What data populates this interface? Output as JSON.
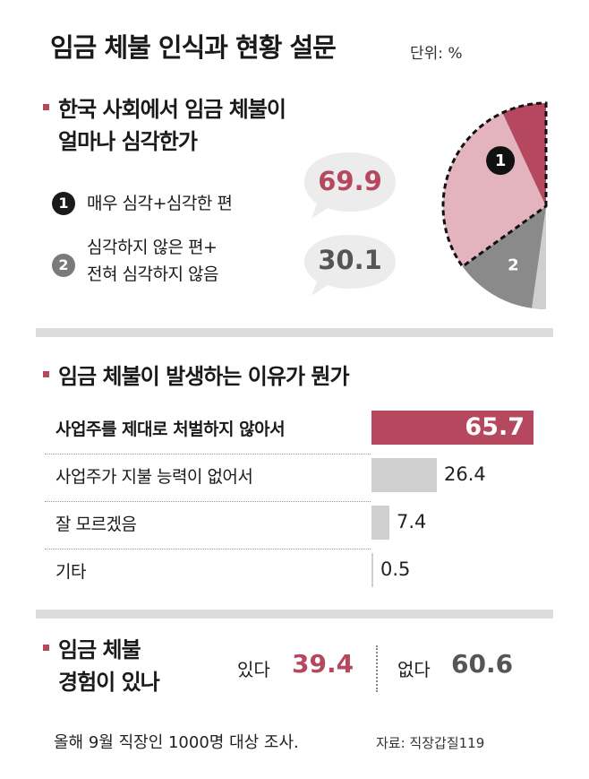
{
  "title": "임금 체불 인식과 현황 설문",
  "unit": "단위: %",
  "section1": {
    "title_line1": "한국 사회에서 임금 체불이",
    "title_line2": "얼마나 심각한가",
    "items": [
      {
        "num": "1",
        "label_line1": "매우 심각+심각한 편",
        "label_line2": "",
        "value": "69.9"
      },
      {
        "num": "2",
        "label_line1": "심각하지 않은 편+",
        "label_line2": "전혀 심각하지 않음",
        "value": "30.1"
      }
    ]
  },
  "section2": {
    "title": "임금 체불이 발생하는 이유가 뭔가"
  },
  "section3": {
    "title_line1": "임금 체불",
    "title_line2": "경험이 있나",
    "yes_label": "있다",
    "yes_value": "39.4",
    "no_label": "없다",
    "no_value": "60.6"
  },
  "footnote": "올해 9월 직장인 1000명 대상 조사.",
  "source": "자료: 직장갑질119",
  "colors": {
    "accent": "#b5485f",
    "accent_light": "#e3b4be",
    "gray_dark": "#8a8a8a",
    "gray_light": "#cfcfcf",
    "value_gray": "#555555"
  },
  "chart_data": [
    {
      "type": "pie",
      "categories": [
        "매우 심각+심각한 편",
        "심각하지 않은 편+전혀 심각하지 않음"
      ],
      "values": [
        69.9,
        30.1
      ],
      "labels": [
        "1",
        "2"
      ]
    },
    {
      "type": "bar",
      "orientation": "horizontal",
      "title": "임금 체불이 발생하는 이유가 뭔가",
      "categories": [
        "사업주를 제대로 처벌하지 않아서",
        "사업주가 지불 능력이 없어서",
        "잘 모르겠음",
        "기타"
      ],
      "values": [
        65.7,
        26.4,
        7.4,
        0.5
      ],
      "value_labels": [
        "65.7",
        "26.4",
        "7.4",
        "0.5"
      ]
    }
  ]
}
